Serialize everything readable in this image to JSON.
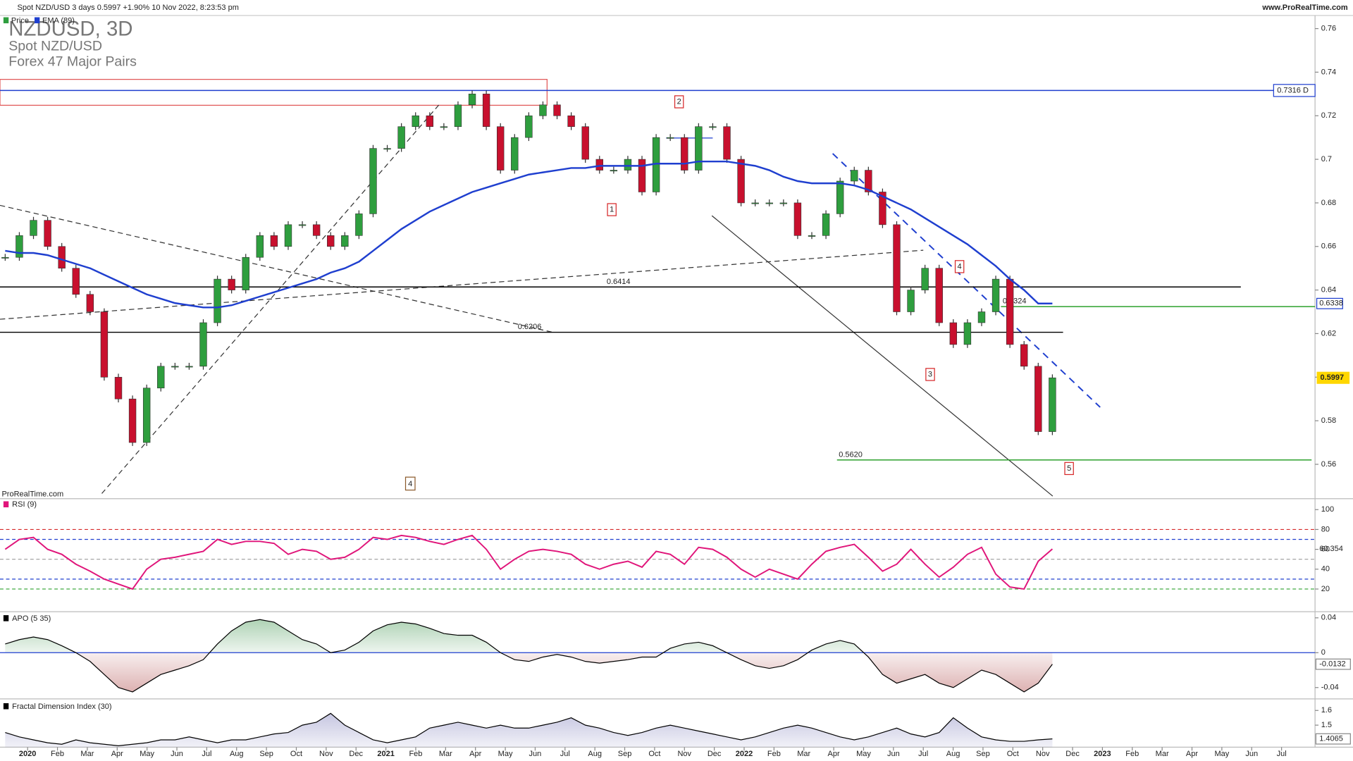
{
  "header": {
    "title": "Spot NZD/USD 3 days 0.5997 +1.90% 10 Nov 2022, 8:23:53 pm",
    "site": "www.ProRealTime.com"
  },
  "chart_data": [
    {
      "type": "candlestick",
      "title": "NZDUSD, 3D",
      "subtitles": [
        "Spot NZD/USD",
        "Forex 47 Major Pairs"
      ],
      "watermark": "ProRealTime.com",
      "up_color": "#2e9e3e",
      "down_color": "#c8102e",
      "series": [
        {
          "name": "Price",
          "color": "#2e9e3e",
          "values": [
            0.655,
            0.665,
            0.672,
            0.66,
            0.65,
            0.638,
            0.63,
            0.6,
            0.59,
            0.57,
            0.595,
            0.605,
            0.605,
            0.605,
            0.625,
            0.645,
            0.64,
            0.655,
            0.665,
            0.66,
            0.67,
            0.67,
            0.665,
            0.66,
            0.665,
            0.675,
            0.705,
            0.705,
            0.715,
            0.72,
            0.715,
            0.715,
            0.725,
            0.73,
            0.715,
            0.695,
            0.71,
            0.72,
            0.725,
            0.72,
            0.715,
            0.7,
            0.695,
            0.695,
            0.7,
            0.685,
            0.71,
            0.71,
            0.695,
            0.715,
            0.715,
            0.7,
            0.68,
            0.68,
            0.68,
            0.68,
            0.665,
            0.665,
            0.675,
            0.69,
            0.695,
            0.685,
            0.67,
            0.63,
            0.64,
            0.65,
            0.625,
            0.615,
            0.625,
            0.63,
            0.645,
            0.615,
            0.605,
            0.575,
            0.5997
          ]
        },
        {
          "name": "EMA (89)",
          "color": "#1f3fcf",
          "values": [
            0.658,
            0.657,
            0.657,
            0.656,
            0.654,
            0.652,
            0.65,
            0.647,
            0.644,
            0.641,
            0.638,
            0.636,
            0.634,
            0.633,
            0.632,
            0.632,
            0.633,
            0.635,
            0.637,
            0.639,
            0.641,
            0.643,
            0.645,
            0.648,
            0.65,
            0.653,
            0.658,
            0.663,
            0.668,
            0.672,
            0.676,
            0.679,
            0.682,
            0.685,
            0.687,
            0.689,
            0.691,
            0.693,
            0.694,
            0.695,
            0.696,
            0.696,
            0.697,
            0.697,
            0.697,
            0.697,
            0.698,
            0.698,
            0.698,
            0.699,
            0.699,
            0.699,
            0.698,
            0.697,
            0.695,
            0.692,
            0.69,
            0.689,
            0.689,
            0.689,
            0.688,
            0.686,
            0.683,
            0.68,
            0.677,
            0.673,
            0.669,
            0.665,
            0.661,
            0.656,
            0.651,
            0.645,
            0.64,
            0.6338,
            0.6338
          ]
        }
      ],
      "levels": [
        {
          "value": 0.7316,
          "label": "0.7316 D",
          "color": "#1f3fcf"
        },
        {
          "value": 0.6414,
          "label": "0.6414",
          "color": "#000000"
        },
        {
          "value": 0.6206,
          "label": "0.6206",
          "color": "#000000"
        },
        {
          "value": 0.6324,
          "label": "0.6324",
          "color": "#2ca02c"
        },
        {
          "value": 0.562,
          "label": "0.5620",
          "color": "#2ca02c"
        }
      ],
      "wave_labels": [
        "1",
        "2",
        "3",
        "4",
        "5"
      ],
      "cycle_label": "4",
      "ylim": [
        0.545,
        0.766
      ],
      "yticks": [
        0.76,
        0.74,
        0.72,
        0.7,
        0.68,
        0.66,
        0.64,
        0.62,
        0.6,
        0.58,
        0.56
      ]
    },
    {
      "type": "line",
      "title": "RSI (9)",
      "color": "#e0157a",
      "values": [
        60,
        70,
        72,
        60,
        55,
        45,
        38,
        30,
        25,
        20,
        40,
        50,
        52,
        55,
        58,
        70,
        65,
        68,
        68,
        66,
        55,
        60,
        58,
        50,
        52,
        60,
        72,
        70,
        74,
        72,
        68,
        65,
        70,
        74,
        60,
        40,
        50,
        58,
        60,
        58,
        55,
        45,
        40,
        45,
        48,
        42,
        58,
        55,
        45,
        62,
        60,
        52,
        40,
        32,
        40,
        35,
        30,
        45,
        58,
        62,
        65,
        52,
        38,
        45,
        60,
        45,
        32,
        42,
        55,
        62,
        35,
        22,
        20,
        48,
        60.354
      ],
      "levels": [
        {
          "value": 80,
          "color": "#d62728"
        },
        {
          "value": 70,
          "color": "#1f3fcf"
        },
        {
          "value": 50,
          "color": "#999999"
        },
        {
          "value": 30,
          "color": "#1f3fcf"
        },
        {
          "value": 20,
          "color": "#2ca02c"
        }
      ],
      "ylim": [
        -2,
        111
      ],
      "yticks": [
        100,
        80,
        60,
        40,
        20
      ]
    },
    {
      "type": "area",
      "title": "APO (5 35)",
      "color": "#000000",
      "up_color": "#2e8b3e",
      "down_color": "#a83a3a",
      "zero_color": "#1f3fcf",
      "values": [
        0.01,
        0.015,
        0.018,
        0.015,
        0.008,
        0.0,
        -0.01,
        -0.025,
        -0.04,
        -0.045,
        -0.035,
        -0.025,
        -0.02,
        -0.015,
        -0.008,
        0.01,
        0.025,
        0.035,
        0.038,
        0.035,
        0.025,
        0.015,
        0.01,
        0.0,
        0.003,
        0.012,
        0.025,
        0.032,
        0.035,
        0.033,
        0.028,
        0.022,
        0.02,
        0.02,
        0.012,
        0.0,
        -0.008,
        -0.01,
        -0.005,
        -0.002,
        -0.005,
        -0.01,
        -0.012,
        -0.01,
        -0.008,
        -0.005,
        -0.005,
        0.005,
        0.01,
        0.012,
        0.008,
        0.0,
        -0.008,
        -0.015,
        -0.018,
        -0.015,
        -0.008,
        0.003,
        0.01,
        0.014,
        0.01,
        -0.005,
        -0.025,
        -0.035,
        -0.03,
        -0.025,
        -0.035,
        -0.04,
        -0.03,
        -0.02,
        -0.025,
        -0.035,
        -0.045,
        -0.035,
        -0.0132
      ],
      "ylim": [
        -0.053,
        0.046
      ],
      "yticks": [
        0.04,
        0,
        -0.04
      ]
    },
    {
      "type": "area",
      "title": "Fractal Dimension Index (30)",
      "color": "#000000",
      "up_color": "#5a5aa8",
      "down_color": "#5a5aa8",
      "values": [
        1.45,
        1.42,
        1.4,
        1.38,
        1.37,
        1.4,
        1.38,
        1.37,
        1.36,
        1.37,
        1.38,
        1.4,
        1.4,
        1.42,
        1.4,
        1.38,
        1.4,
        1.4,
        1.42,
        1.44,
        1.45,
        1.5,
        1.52,
        1.58,
        1.5,
        1.45,
        1.4,
        1.38,
        1.4,
        1.42,
        1.48,
        1.5,
        1.52,
        1.5,
        1.48,
        1.5,
        1.48,
        1.48,
        1.5,
        1.52,
        1.55,
        1.5,
        1.48,
        1.45,
        1.43,
        1.45,
        1.48,
        1.5,
        1.48,
        1.46,
        1.44,
        1.42,
        1.4,
        1.42,
        1.45,
        1.48,
        1.5,
        1.48,
        1.45,
        1.42,
        1.4,
        1.42,
        1.45,
        1.48,
        1.44,
        1.42,
        1.45,
        1.55,
        1.48,
        1.42,
        1.4,
        1.39,
        1.39,
        1.4,
        1.4065
      ],
      "ylim": [
        1.35,
        1.667
      ],
      "yticks": [
        1.6,
        1.5
      ],
      "x_labels": [
        "2020",
        "Feb",
        "Mar",
        "Apr",
        "May",
        "Jun",
        "Jul",
        "Aug",
        "Sep",
        "Oct",
        "Nov",
        "Dec",
        "2021",
        "Feb",
        "Mar",
        "Apr",
        "May",
        "Jun",
        "Jul",
        "Aug",
        "Sep",
        "Oct",
        "Nov",
        "Dec",
        "2022",
        "Feb",
        "Mar",
        "Apr",
        "May",
        "Jun",
        "Jul",
        "Aug",
        "Sep",
        "Oct",
        "Nov",
        "Dec",
        "2023",
        "Feb",
        "Mar",
        "Apr",
        "May",
        "Jun",
        "Jul"
      ]
    }
  ]
}
